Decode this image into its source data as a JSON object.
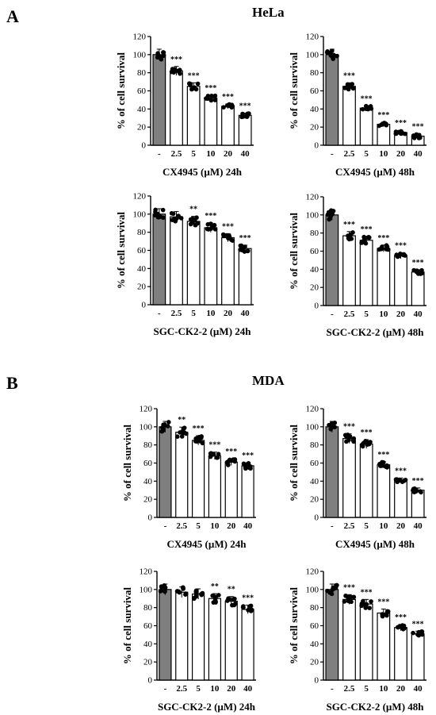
{
  "panels": {
    "A": {
      "letter": "A",
      "title": "HeLa"
    },
    "B": {
      "letter": "B",
      "title": "MDA"
    }
  },
  "colors": {
    "control_bar": "#7f7f7f",
    "treated_bar": "#ffffff",
    "points": "#000000",
    "axis": "#000000"
  },
  "chart_data": [
    {
      "id": "hela-cx-24",
      "type": "bar",
      "xlabel": "CX4945 (µM) 24h",
      "ylabel": "% of cell survival",
      "categories": [
        "-",
        "2.5",
        "5",
        "10",
        "20",
        "40"
      ],
      "values": [
        100,
        82,
        65,
        52,
        43,
        33
      ],
      "significance": [
        "",
        "***",
        "***",
        "***",
        "***",
        "***"
      ],
      "ylim": [
        0,
        120
      ],
      "yticks": [
        0,
        20,
        40,
        60,
        80,
        100,
        120
      ]
    },
    {
      "id": "hela-cx-48",
      "type": "bar",
      "xlabel": "CX4945 (µM) 48h",
      "ylabel": "% of cell survival",
      "categories": [
        "-",
        "2.5",
        "5",
        "10",
        "20",
        "40"
      ],
      "values": [
        100,
        65,
        41,
        23,
        14,
        10
      ],
      "significance": [
        "",
        "***",
        "***",
        "***",
        "***",
        "***"
      ],
      "ylim": [
        0,
        120
      ],
      "yticks": [
        0,
        20,
        40,
        60,
        80,
        100,
        120
      ]
    },
    {
      "id": "hela-sgc-24",
      "type": "bar",
      "xlabel": "SGC-CK2-2 (µM) 24h",
      "ylabel": "% of cell survival",
      "categories": [
        "-",
        "2.5",
        "5",
        "10",
        "20",
        "40"
      ],
      "values": [
        100,
        97,
        92,
        85,
        74,
        62
      ],
      "significance": [
        "",
        "",
        "**",
        "***",
        "***",
        "***"
      ],
      "ylim": [
        0,
        120
      ],
      "yticks": [
        0,
        20,
        40,
        60,
        80,
        100,
        120
      ]
    },
    {
      "id": "hela-sgc-48",
      "type": "bar",
      "xlabel": "SGC-CK2-2 (µM) 48h",
      "ylabel": "% of cell survival",
      "categories": [
        "-",
        "2.5",
        "5",
        "10",
        "20",
        "40"
      ],
      "values": [
        100,
        77,
        72,
        63,
        55,
        37
      ],
      "significance": [
        "",
        "***",
        "***",
        "***",
        "***",
        "***"
      ],
      "ylim": [
        0,
        120
      ],
      "yticks": [
        0,
        20,
        40,
        60,
        80,
        100,
        120
      ]
    },
    {
      "id": "mda-cx-24",
      "type": "bar",
      "xlabel": "CX4945 (µM) 24h",
      "ylabel": "% of cell survival",
      "categories": [
        "-",
        "2.5",
        "5",
        "10",
        "20",
        "40"
      ],
      "values": [
        100,
        94,
        85,
        68,
        61,
        57
      ],
      "significance": [
        "",
        "**",
        "***",
        "***",
        "***",
        "***"
      ],
      "ylim": [
        0,
        120
      ],
      "yticks": [
        0,
        20,
        40,
        60,
        80,
        100,
        120
      ]
    },
    {
      "id": "mda-cx-48",
      "type": "bar",
      "xlabel": "CX4945 (µM) 48h",
      "ylabel": "% of cell survival",
      "categories": [
        "-",
        "2.5",
        "5",
        "10",
        "20",
        "40"
      ],
      "values": [
        100,
        87,
        81,
        58,
        41,
        30
      ],
      "significance": [
        "",
        "***",
        "***",
        "***",
        "***",
        "***"
      ],
      "ylim": [
        0,
        120
      ],
      "yticks": [
        0,
        20,
        40,
        60,
        80,
        100,
        120
      ]
    },
    {
      "id": "mda-sgc-24",
      "type": "bar",
      "xlabel": "SGC-CK2-2 (µM) 24h",
      "ylabel": "% of cell survival",
      "categories": [
        "-",
        "2.5",
        "5",
        "10",
        "20",
        "40"
      ],
      "values": [
        100,
        97,
        95,
        90,
        87,
        78
      ],
      "significance": [
        "",
        "",
        "",
        "**",
        "**",
        "***"
      ],
      "ylim": [
        0,
        120
      ],
      "yticks": [
        0,
        20,
        40,
        60,
        80,
        100,
        120
      ]
    },
    {
      "id": "mda-sgc-48",
      "type": "bar",
      "xlabel": "SGC-CK2-2 (µM) 48h",
      "ylabel": "% of cell survival",
      "categories": [
        "-",
        "2.5",
        "5",
        "10",
        "20",
        "40"
      ],
      "values": [
        100,
        89,
        84,
        74,
        58,
        51
      ],
      "significance": [
        "",
        "***",
        "***",
        "***",
        "***",
        "***"
      ],
      "ylim": [
        0,
        120
      ],
      "yticks": [
        0,
        20,
        40,
        60,
        80,
        100,
        120
      ]
    }
  ]
}
